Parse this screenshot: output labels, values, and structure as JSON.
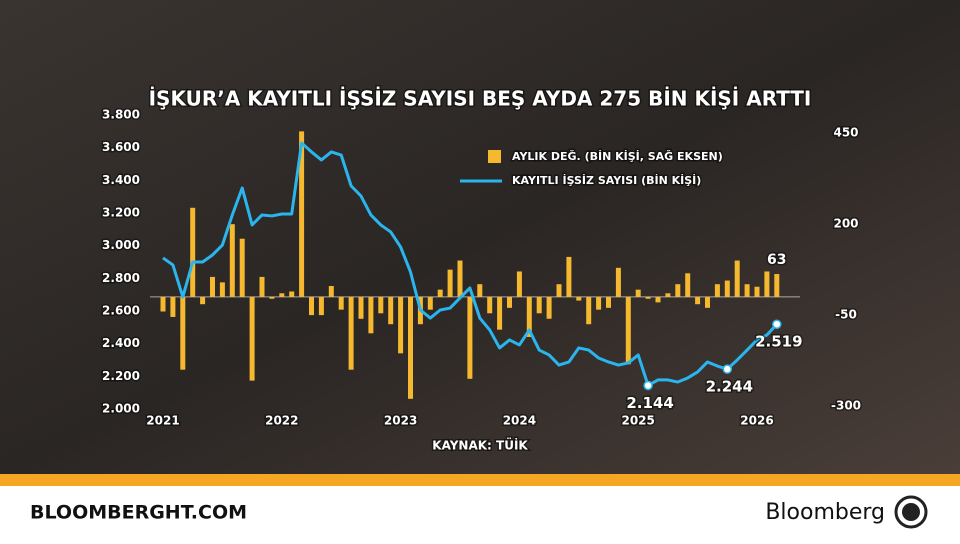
{
  "chart_data": {
    "type": "bar_line",
    "title": "İŞKUR’A KAYITLI İŞSİZ SAYISI BEŞ AYDA 275 BİN KİŞİ ARTTI",
    "source": "KAYNAK: TÜİK",
    "categories": [
      "2021",
      null,
      null,
      null,
      null,
      null,
      null,
      null,
      null,
      null,
      null,
      null,
      "2022",
      null,
      null,
      null,
      null,
      null,
      null,
      null,
      null,
      null,
      null,
      null,
      "2023",
      null,
      null,
      null,
      null,
      null,
      null,
      null,
      null,
      null,
      null,
      null,
      "2024",
      null,
      null,
      null,
      null,
      null,
      null,
      null,
      null,
      null,
      null,
      null,
      "2025",
      null,
      null,
      null,
      null,
      null,
      null,
      null,
      null,
      null,
      null,
      null,
      "2026",
      null,
      null
    ],
    "series": [
      {
        "name": "AYLIK DEĞ. (BİN KİŞİ, SAĞ EKSEN)",
        "type": "bar",
        "axis": "y2",
        "color": "#f5b82e",
        "values": [
          -40,
          -55,
          -200,
          245,
          -20,
          55,
          40,
          200,
          160,
          -230,
          55,
          -5,
          10,
          15,
          455,
          -50,
          -50,
          30,
          -35,
          -200,
          -60,
          -100,
          -45,
          -75,
          -155,
          -280,
          -75,
          -35,
          20,
          75,
          100,
          -225,
          35,
          -45,
          -90,
          -30,
          70,
          -110,
          -45,
          -60,
          35,
          110,
          -10,
          -75,
          -35,
          -30,
          80,
          -185,
          20,
          -5,
          -15,
          10,
          35,
          65,
          -20,
          -30,
          35,
          45,
          100,
          35,
          28,
          70,
          63
        ],
        "value_labels": [
          null,
          null,
          null,
          null,
          null,
          null,
          null,
          null,
          null,
          null,
          null,
          null,
          null,
          null,
          null,
          null,
          null,
          null,
          null,
          null,
          null,
          null,
          null,
          null,
          null,
          null,
          null,
          null,
          null,
          null,
          null,
          null,
          null,
          null,
          null,
          null,
          null,
          null,
          null,
          null,
          null,
          null,
          null,
          null,
          null,
          null,
          null,
          null,
          null,
          null,
          null,
          null,
          null,
          null,
          null,
          null,
          null,
          null,
          null,
          null,
          null,
          null,
          "63"
        ]
      },
      {
        "name": "KAYITLI İŞSİZ SAYISI (BİN KİŞİ)",
        "type": "line",
        "color": "#2bb5ee",
        "values": [
          2925,
          2882,
          2686,
          2900,
          2900,
          2943,
          3004,
          3188,
          3353,
          3127,
          3188,
          3182,
          3194,
          3194,
          3629,
          3574,
          3525,
          3574,
          3555,
          3366,
          3304,
          3188,
          3127,
          3084,
          2992,
          2839,
          2606,
          2557,
          2606,
          2618,
          2680,
          2741,
          2557,
          2484,
          2374,
          2423,
          2392,
          2484,
          2361,
          2331,
          2269,
          2288,
          2374,
          2361,
          2312,
          2288,
          2269,
          2282,
          2331,
          2144,
          2178,
          2178,
          2165,
          2190,
          2227,
          2288,
          2263,
          2244,
          2300,
          2361,
          2423,
          2453,
          2519
        ],
        "value_labels": [
          null,
          null,
          null,
          null,
          null,
          null,
          null,
          null,
          null,
          null,
          null,
          null,
          null,
          null,
          null,
          null,
          null,
          null,
          null,
          null,
          null,
          null,
          null,
          null,
          null,
          null,
          null,
          null,
          null,
          null,
          null,
          null,
          null,
          null,
          null,
          null,
          null,
          null,
          null,
          null,
          null,
          null,
          null,
          null,
          null,
          null,
          null,
          null,
          null,
          "2.144",
          null,
          null,
          null,
          null,
          null,
          null,
          null,
          "2.244",
          null,
          null,
          null,
          null,
          "2.519"
        ]
      }
    ],
    "ylim": [
      2000,
      3800
    ],
    "yticks": [
      {
        "value": 2000,
        "label": "2.000"
      },
      {
        "value": 2200,
        "label": "2.200"
      },
      {
        "value": 2400,
        "label": "2.400"
      },
      {
        "value": 2600,
        "label": "2.600"
      },
      {
        "value": 2800,
        "label": "2.800"
      },
      {
        "value": 3000,
        "label": "3.000"
      },
      {
        "value": 3200,
        "label": "3.200"
      },
      {
        "value": 3400,
        "label": "3.400"
      },
      {
        "value": 3600,
        "label": "3.600"
      },
      {
        "value": 3800,
        "label": "3.800"
      }
    ],
    "y2lim": [
      -308,
      500
    ],
    "y2ticks": [
      450,
      200,
      -50,
      -300
    ],
    "grid": false
  },
  "footer": {
    "site": "BLOOMBERGHT.COM",
    "brand": "Bloomberg"
  }
}
